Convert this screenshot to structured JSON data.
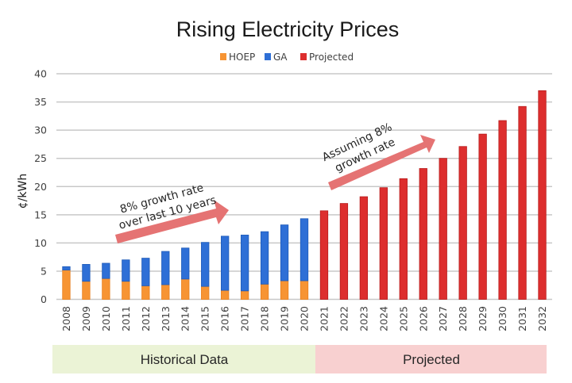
{
  "chart_data": {
    "type": "bar",
    "stacked": true,
    "title": "Rising Electricity Prices",
    "xlabel": "",
    "ylabel": "¢/kWh",
    "ylim": [
      0,
      40
    ],
    "yticks": [
      0,
      5,
      10,
      15,
      20,
      25,
      30,
      35,
      40
    ],
    "grid": true,
    "legend_position": "top-center",
    "categories": [
      "2008",
      "2009",
      "2010",
      "2011",
      "2012",
      "2013",
      "2014",
      "2015",
      "2016",
      "2017",
      "2018",
      "2019",
      "2020",
      "2021",
      "2022",
      "2023",
      "2024",
      "2025",
      "2026",
      "2027",
      "2028",
      "2029",
      "2030",
      "2031",
      "2032"
    ],
    "series": [
      {
        "name": "HOEP",
        "color": "#f79433",
        "values": [
          5.2,
          3.2,
          3.7,
          3.2,
          2.4,
          2.6,
          3.6,
          2.3,
          1.6,
          1.5,
          2.7,
          3.3,
          3.3,
          null,
          null,
          null,
          null,
          null,
          null,
          null,
          null,
          null,
          null,
          null,
          null
        ]
      },
      {
        "name": "GA",
        "color": "#2e6fd6",
        "values": [
          0.6,
          3.0,
          2.7,
          3.8,
          4.9,
          5.9,
          5.5,
          7.8,
          9.6,
          9.9,
          9.3,
          9.9,
          11.0,
          null,
          null,
          null,
          null,
          null,
          null,
          null,
          null,
          null,
          null,
          null,
          null
        ]
      },
      {
        "name": "Projected",
        "color": "#dd2e2e",
        "values": [
          null,
          null,
          null,
          null,
          null,
          null,
          null,
          null,
          null,
          null,
          null,
          null,
          null,
          15.7,
          17.0,
          18.2,
          19.8,
          21.4,
          23.2,
          25.0,
          27.1,
          29.3,
          31.7,
          34.2,
          37.0
        ]
      }
    ],
    "annotations": [
      {
        "lines": [
          "8% growth rate",
          "over last 10 years"
        ],
        "arrow_color": "#e57373"
      },
      {
        "lines": [
          "Assuming 8%",
          "growth rate"
        ],
        "arrow_color": "#e57373"
      }
    ],
    "bands": [
      {
        "label": "Historical Data",
        "from": "2008",
        "to": "2020",
        "color": "#ebf3d6"
      },
      {
        "label": "Projected",
        "from": "2021",
        "to": "2032",
        "color": "#f8d0d0"
      }
    ]
  }
}
